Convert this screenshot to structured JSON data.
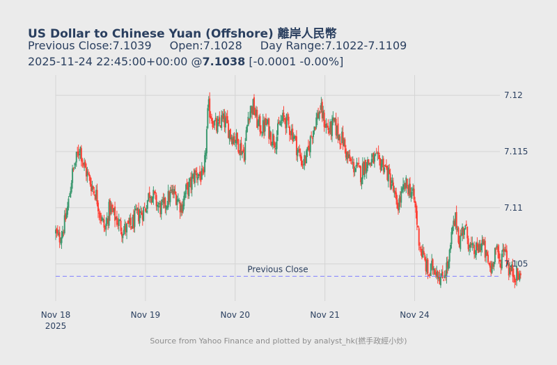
{
  "header": {
    "title": "US Dollar to Chinese Yuan (Offshore) 離岸人民幣",
    "previous_close": "Previous Close:7.1039",
    "open": "Open:7.1028",
    "day_range": "Day Range:7.1022-7.1109",
    "timestamp": "2025-11-24 22:45:00+00:00 @",
    "last": "7.1038",
    "change": "[-0.0001 -0.00%]"
  },
  "footer": {
    "source": "Source from Yahoo Finance and plotted by analyst_hk(撚手政經小炒)"
  },
  "chart_data": {
    "type": "candlestick",
    "title": "US Dollar to Chinese Yuan (Offshore) 離岸人民幣",
    "x_ticks": [
      {
        "pos": 0,
        "label": "Nov 18",
        "sub": "2025"
      },
      {
        "pos": 100,
        "label": "Nov 19",
        "sub": ""
      },
      {
        "pos": 200,
        "label": "Nov 20",
        "sub": ""
      },
      {
        "pos": 300,
        "label": "Nov 21",
        "sub": ""
      },
      {
        "pos": 400,
        "label": "Nov 24",
        "sub": ""
      }
    ],
    "x_range": [
      0,
      495
    ],
    "y_ticks": [
      7.105,
      7.11,
      7.115,
      7.12
    ],
    "ylim": [
      7.1017,
      7.1218
    ],
    "y_axis_side": "right",
    "grid": true,
    "colors": {
      "up": "#3d9970",
      "down": "#ff4136",
      "ref_line": "#7f7fff",
      "grid": "#d4d4d4"
    },
    "reference_line": {
      "label": "Previous Close",
      "value": 7.1039
    },
    "anchors": [
      [
        0,
        7.1078
      ],
      [
        3,
        7.1072
      ],
      [
        6,
        7.1076
      ],
      [
        10,
        7.1086
      ],
      [
        14,
        7.1103
      ],
      [
        18,
        7.1128
      ],
      [
        22,
        7.114
      ],
      [
        27,
        7.1155
      ],
      [
        31,
        7.1138
      ],
      [
        36,
        7.1128
      ],
      [
        40,
        7.112
      ],
      [
        45,
        7.1112
      ],
      [
        50,
        7.1093
      ],
      [
        55,
        7.108
      ],
      [
        60,
        7.11
      ],
      [
        65,
        7.1093
      ],
      [
        70,
        7.1087
      ],
      [
        75,
        7.108
      ],
      [
        80,
        7.1082
      ],
      [
        85,
        7.1085
      ],
      [
        90,
        7.1093
      ],
      [
        95,
        7.1095
      ],
      [
        100,
        7.11
      ],
      [
        105,
        7.1115
      ],
      [
        110,
        7.1108
      ],
      [
        115,
        7.11
      ],
      [
        120,
        7.11
      ],
      [
        125,
        7.1108
      ],
      [
        130,
        7.1113
      ],
      [
        135,
        7.111
      ],
      [
        140,
        7.11
      ],
      [
        145,
        7.1115
      ],
      [
        150,
        7.112
      ],
      [
        155,
        7.113
      ],
      [
        160,
        7.113
      ],
      [
        165,
        7.1125
      ],
      [
        170,
        7.119
      ],
      [
        175,
        7.1178
      ],
      [
        180,
        7.117
      ],
      [
        185,
        7.1178
      ],
      [
        190,
        7.1175
      ],
      [
        195,
        7.1165
      ],
      [
        200,
        7.1162
      ],
      [
        205,
        7.1155
      ],
      [
        210,
        7.1148
      ],
      [
        215,
        7.1185
      ],
      [
        220,
        7.119
      ],
      [
        225,
        7.1175
      ],
      [
        230,
        7.117
      ],
      [
        235,
        7.1175
      ],
      [
        240,
        7.1163
      ],
      [
        245,
        7.116
      ],
      [
        250,
        7.1175
      ],
      [
        255,
        7.118
      ],
      [
        260,
        7.1172
      ],
      [
        265,
        7.1165
      ],
      [
        270,
        7.115
      ],
      [
        275,
        7.114
      ],
      [
        280,
        7.1145
      ],
      [
        285,
        7.1165
      ],
      [
        290,
        7.1178
      ],
      [
        295,
        7.1188
      ],
      [
        300,
        7.1175
      ],
      [
        305,
        7.1168
      ],
      [
        310,
        7.1175
      ],
      [
        315,
        7.1165
      ],
      [
        320,
        7.116
      ],
      [
        325,
        7.1145
      ],
      [
        330,
        7.1138
      ],
      [
        335,
        7.1135
      ],
      [
        340,
        7.113
      ],
      [
        345,
        7.114
      ],
      [
        350,
        7.114
      ],
      [
        355,
        7.1143
      ],
      [
        360,
        7.114
      ],
      [
        365,
        7.114
      ],
      [
        370,
        7.113
      ],
      [
        375,
        7.112
      ],
      [
        380,
        7.11
      ],
      [
        385,
        7.111
      ],
      [
        390,
        7.112
      ],
      [
        395,
        7.1117
      ],
      [
        400,
        7.1105
      ],
      [
        405,
        7.107
      ],
      [
        408,
        7.106
      ],
      [
        412,
        7.105
      ],
      [
        416,
        7.104
      ],
      [
        420,
        7.1048
      ],
      [
        425,
        7.1045
      ],
      [
        430,
        7.1035
      ],
      [
        434,
        7.1045
      ],
      [
        438,
        7.105
      ],
      [
        442,
        7.108
      ],
      [
        446,
        7.109
      ],
      [
        450,
        7.107
      ],
      [
        455,
        7.1085
      ],
      [
        460,
        7.107
      ],
      [
        465,
        7.106
      ],
      [
        470,
        7.1062
      ],
      [
        475,
        7.107
      ],
      [
        480,
        7.1055
      ],
      [
        485,
        7.1045
      ],
      [
        490,
        7.1065
      ],
      [
        495,
        7.105
      ],
      [
        500,
        7.1068
      ],
      [
        505,
        7.1045
      ],
      [
        510,
        7.1042
      ],
      [
        515,
        7.104
      ],
      [
        519,
        7.1036
      ]
    ]
  }
}
